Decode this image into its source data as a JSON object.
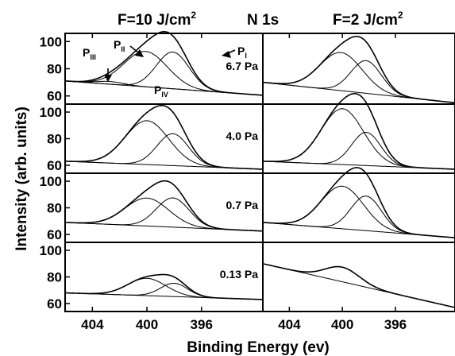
{
  "chart_data": {
    "type": "line",
    "headers": {
      "left": "F=10 J/cm",
      "left_sup": "2",
      "center": "N 1s",
      "right": "F=2 J/cm",
      "right_sup": "2"
    },
    "ylabel": "Intensity (arb. units)",
    "xlabel": "Binding Energy (ev)",
    "xlim": [
      406,
      391.5
    ],
    "ylim": [
      54,
      106
    ],
    "x_ticks": [
      404,
      400,
      396
    ],
    "y_ticks": [
      60,
      80,
      100
    ],
    "peak_labels": [
      {
        "letter": "P",
        "sub": "III"
      },
      {
        "letter": "P",
        "sub": "II"
      },
      {
        "letter": "P",
        "sub": "I"
      },
      {
        "letter": "P",
        "sub": "IV"
      }
    ],
    "panels": [
      {
        "pressure": "6.7 Pa",
        "col": 0,
        "row": 0,
        "bg": [
          71,
          60.5
        ],
        "peaks": [
          {
            "name": "P_II",
            "center": 400.1,
            "height": 26,
            "width": 1.6
          },
          {
            "name": "P_I",
            "center": 398.1,
            "height": 27,
            "width": 1.2
          },
          {
            "name": "P_III",
            "center": 402.7,
            "height": 2,
            "width": 1.0
          }
        ]
      },
      {
        "pressure": "",
        "col": 1,
        "row": 0,
        "bg": [
          70,
          55
        ],
        "peaks": [
          {
            "name": "P_II",
            "center": 400.1,
            "height": 28,
            "width": 1.6
          },
          {
            "name": "P_I",
            "center": 398.2,
            "height": 24,
            "width": 1.15
          }
        ]
      },
      {
        "pressure": "4.0 Pa",
        "col": 0,
        "row": 1,
        "bg": [
          63,
          57
        ],
        "peaks": [
          {
            "name": "P_II",
            "center": 400.0,
            "height": 33,
            "width": 1.6
          },
          {
            "name": "P_I",
            "center": 398.1,
            "height": 24,
            "width": 1.15
          }
        ]
      },
      {
        "pressure": "",
        "col": 1,
        "row": 1,
        "bg": [
          63,
          57
        ],
        "peaks": [
          {
            "name": "P_II",
            "center": 400.0,
            "height": 42,
            "width": 1.6
          },
          {
            "name": "P_I",
            "center": 398.2,
            "height": 25,
            "width": 1.1
          }
        ]
      },
      {
        "pressure": "0.7 Pa",
        "col": 0,
        "row": 2,
        "bg": [
          69,
          62.5
        ],
        "peaks": [
          {
            "name": "P_II",
            "center": 400.0,
            "height": 21,
            "width": 1.6
          },
          {
            "name": "P_I",
            "center": 398.1,
            "height": 22,
            "width": 1.2
          }
        ]
      },
      {
        "pressure": "",
        "col": 1,
        "row": 2,
        "bg": [
          69,
          57.5
        ],
        "peaks": [
          {
            "name": "P_II",
            "center": 400.0,
            "height": 32,
            "width": 1.6
          },
          {
            "name": "P_I",
            "center": 398.2,
            "height": 26,
            "width": 1.15
          }
        ]
      },
      {
        "pressure": "0.13 Pa",
        "col": 0,
        "row": 3,
        "bg": [
          68,
          63
        ],
        "peaks": [
          {
            "name": "P_II",
            "center": 400.0,
            "height": 13,
            "width": 1.4
          },
          {
            "name": "P_I",
            "center": 398.0,
            "height": 10,
            "width": 1.0
          }
        ]
      },
      {
        "pressure": "",
        "col": 1,
        "row": 3,
        "bg": [
          90,
          57
        ],
        "peaks": [
          {
            "name": "P_II",
            "center": 400.0,
            "height": 11,
            "width": 1.3
          }
        ]
      }
    ]
  }
}
